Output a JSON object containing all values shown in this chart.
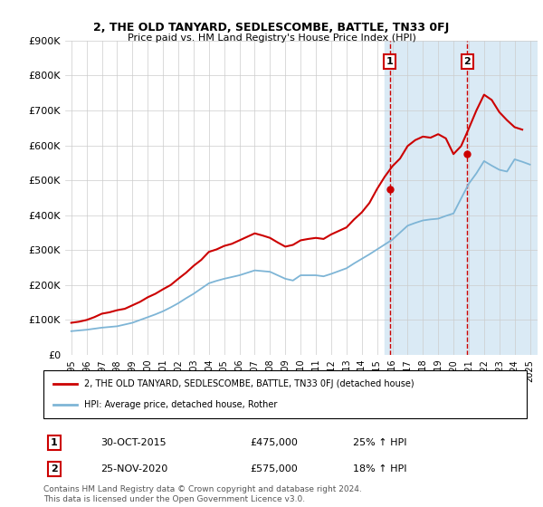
{
  "title": "2, THE OLD TANYARD, SEDLESCOMBE, BATTLE, TN33 0FJ",
  "subtitle": "Price paid vs. HM Land Registry's House Price Index (HPI)",
  "legend_line1": "2, THE OLD TANYARD, SEDLESCOMBE, BATTLE, TN33 0FJ (detached house)",
  "legend_line2": "HPI: Average price, detached house, Rother",
  "annotation1_label": "1",
  "annotation1_date": "30-OCT-2015",
  "annotation1_price": "£475,000",
  "annotation1_hpi": "25% ↑ HPI",
  "annotation2_label": "2",
  "annotation2_date": "25-NOV-2020",
  "annotation2_price": "£575,000",
  "annotation2_hpi": "18% ↑ HPI",
  "footnote": "Contains HM Land Registry data © Crown copyright and database right 2024.\nThis data is licensed under the Open Government Licence v3.0.",
  "red_color": "#cc0000",
  "blue_color": "#7eb5d6",
  "shaded_color": "#daeaf5",
  "vline_color": "#cc0000",
  "ylim_min": 0,
  "ylim_max": 900000,
  "yticks": [
    0,
    100000,
    200000,
    300000,
    400000,
    500000,
    600000,
    700000,
    800000,
    900000
  ],
  "ytick_labels": [
    "£0",
    "£100K",
    "£200K",
    "£300K",
    "£400K",
    "£500K",
    "£600K",
    "£700K",
    "£800K",
    "£900K"
  ],
  "hpi_years": [
    1995,
    1995.5,
    1996,
    1996.5,
    1997,
    1997.5,
    1998,
    1998.5,
    1999,
    1999.5,
    2000,
    2000.5,
    2001,
    2001.5,
    2002,
    2002.5,
    2003,
    2003.5,
    2004,
    2004.5,
    2005,
    2005.5,
    2006,
    2006.5,
    2007,
    2007.5,
    2008,
    2008.5,
    2009,
    2009.5,
    2010,
    2010.5,
    2011,
    2011.5,
    2012,
    2012.5,
    2013,
    2013.5,
    2014,
    2014.5,
    2015,
    2015.5,
    2016,
    2016.5,
    2017,
    2017.5,
    2018,
    2018.5,
    2019,
    2019.5,
    2020,
    2020.5,
    2021,
    2021.5,
    2022,
    2022.5,
    2023,
    2023.5,
    2024,
    2024.5,
    2025
  ],
  "hpi_values": [
    68000,
    70000,
    72000,
    75000,
    78000,
    80000,
    82000,
    87000,
    92000,
    100000,
    108000,
    116000,
    125000,
    136000,
    148000,
    162000,
    175000,
    190000,
    205000,
    212000,
    218000,
    223000,
    228000,
    235000,
    242000,
    240000,
    238000,
    228000,
    218000,
    213000,
    228000,
    228000,
    228000,
    225000,
    232000,
    240000,
    248000,
    262000,
    275000,
    288000,
    302000,
    316000,
    330000,
    350000,
    370000,
    378000,
    385000,
    388000,
    390000,
    398000,
    405000,
    448000,
    490000,
    520000,
    555000,
    542000,
    530000,
    525000,
    560000,
    553000,
    545000
  ],
  "red_years": [
    1995,
    1995.5,
    1996,
    1996.5,
    1997,
    1997.5,
    1998,
    1998.5,
    1999,
    1999.5,
    2000,
    2000.5,
    2001,
    2001.5,
    2002,
    2002.5,
    2003,
    2003.5,
    2004,
    2004.5,
    2005,
    2005.5,
    2006,
    2006.5,
    2007,
    2007.5,
    2008,
    2008.5,
    2009,
    2009.5,
    2010,
    2010.5,
    2011,
    2011.5,
    2012,
    2012.5,
    2013,
    2013.5,
    2014,
    2014.5,
    2015,
    2015.5,
    2016,
    2016.5,
    2017,
    2017.5,
    2018,
    2018.5,
    2019,
    2019.5,
    2020,
    2020.5,
    2021,
    2021.5,
    2022,
    2022.5,
    2023,
    2023.5,
    2024,
    2024.5
  ],
  "red_values": [
    92000,
    95000,
    100000,
    108000,
    118000,
    122000,
    128000,
    132000,
    142000,
    152000,
    165000,
    175000,
    188000,
    200000,
    218000,
    235000,
    255000,
    272000,
    295000,
    302000,
    312000,
    318000,
    328000,
    338000,
    348000,
    342000,
    335000,
    322000,
    310000,
    315000,
    328000,
    332000,
    335000,
    332000,
    345000,
    355000,
    365000,
    388000,
    408000,
    435000,
    475000,
    510000,
    540000,
    562000,
    598000,
    615000,
    625000,
    622000,
    632000,
    620000,
    575000,
    598000,
    648000,
    700000,
    745000,
    730000,
    695000,
    672000,
    652000,
    645000
  ],
  "sale1_year": 2015.83,
  "sale1_value": 475000,
  "sale2_year": 2020.9,
  "sale2_value": 575000,
  "shaded_region_start": 2015.5,
  "shaded_region_end": 2025.5,
  "vline1_year": 2015.83,
  "vline2_year": 2020.9,
  "xlim_min": 1994.6,
  "xlim_max": 2025.5,
  "xticks": [
    1995,
    1996,
    1997,
    1998,
    1999,
    2000,
    2001,
    2002,
    2003,
    2004,
    2005,
    2006,
    2007,
    2008,
    2009,
    2010,
    2011,
    2012,
    2013,
    2014,
    2015,
    2016,
    2017,
    2018,
    2019,
    2020,
    2021,
    2022,
    2023,
    2024,
    2025
  ]
}
